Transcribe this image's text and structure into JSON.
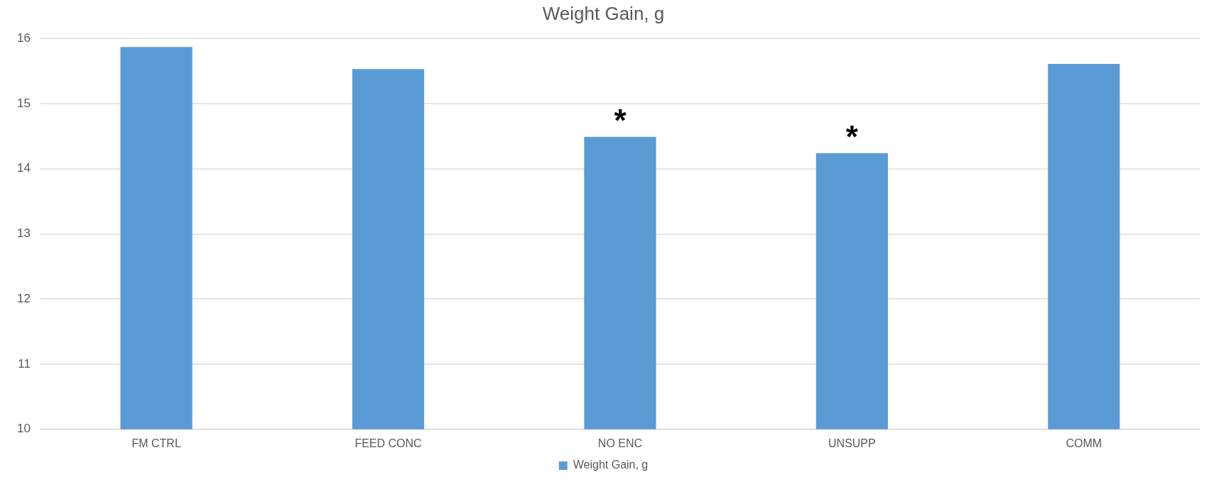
{
  "chart_data": {
    "type": "bar",
    "title": "Weight Gain, g",
    "categories": [
      "FM CTRL",
      "FEED CONC",
      "NO ENC",
      "UNSUPP",
      "COMM"
    ],
    "series": [
      {
        "name": "Weight Gain, g",
        "color": "#5b9bd5",
        "values": [
          15.87,
          15.53,
          14.49,
          14.24,
          15.61
        ]
      }
    ],
    "ylim": [
      10,
      16
    ],
    "yticks": [
      10,
      11,
      12,
      13,
      14,
      15,
      16
    ],
    "grid": "y",
    "legend": "bottom",
    "annotations": [
      {
        "text": "*",
        "x": "NO ENC",
        "y": 14.49
      },
      {
        "text": "*",
        "x": "UNSUPP",
        "y": 14.24
      }
    ]
  }
}
